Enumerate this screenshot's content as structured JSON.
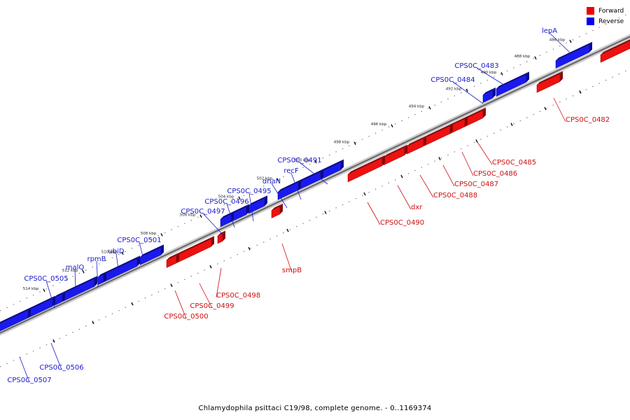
{
  "legend": {
    "forward_label": "Forward",
    "reverse_label": "Reverse",
    "forward_color": "#ee0000",
    "reverse_color": "#0000ee"
  },
  "caption": "Chlamydophila psittaci C19/98, complete genome. - 0..1169374",
  "axis": {
    "tick_labels": [
      "486 kbp",
      "488 kbp",
      "490 kbp",
      "492 kbp",
      "494 kbp",
      "496 kbp",
      "498 kbp",
      "500 kbp",
      "502 kbp",
      "504 kbp",
      "506 kbp",
      "508 kbp",
      "510 kbp",
      "512 kbp",
      "514 kbp"
    ]
  },
  "genes_reverse": [
    {
      "label": "lepA"
    },
    {
      "label": "CPS0C_0483"
    },
    {
      "label": "CPS0C_0484"
    },
    {
      "label": "CPS0C_0491"
    },
    {
      "label": "recF"
    },
    {
      "label": "dnaN"
    },
    {
      "label": "CPS0C_0495"
    },
    {
      "label": "CPS0C_0496"
    },
    {
      "label": "CPS0C_0497"
    },
    {
      "label": "CPS0C_0501"
    },
    {
      "label": "ubiD"
    },
    {
      "label": "rpmB"
    },
    {
      "label": "malQ"
    },
    {
      "label": "CPS0C_0505"
    },
    {
      "label": "CPS0C_0506"
    },
    {
      "label": "CPS0C_0507"
    }
  ],
  "genes_forward": [
    {
      "label": "CPS0C_0482"
    },
    {
      "label": "CPS0C_0485"
    },
    {
      "label": "CPS0C_0486"
    },
    {
      "label": "CPS0C_0487"
    },
    {
      "label": "CPS0C_0488"
    },
    {
      "label": "dxr"
    },
    {
      "label": "CPS0C_0490"
    },
    {
      "label": "smpB"
    },
    {
      "label": "CPS0C_0498"
    },
    {
      "label": "CPS0C_0499"
    },
    {
      "label": "CPS0C_0500"
    }
  ]
}
